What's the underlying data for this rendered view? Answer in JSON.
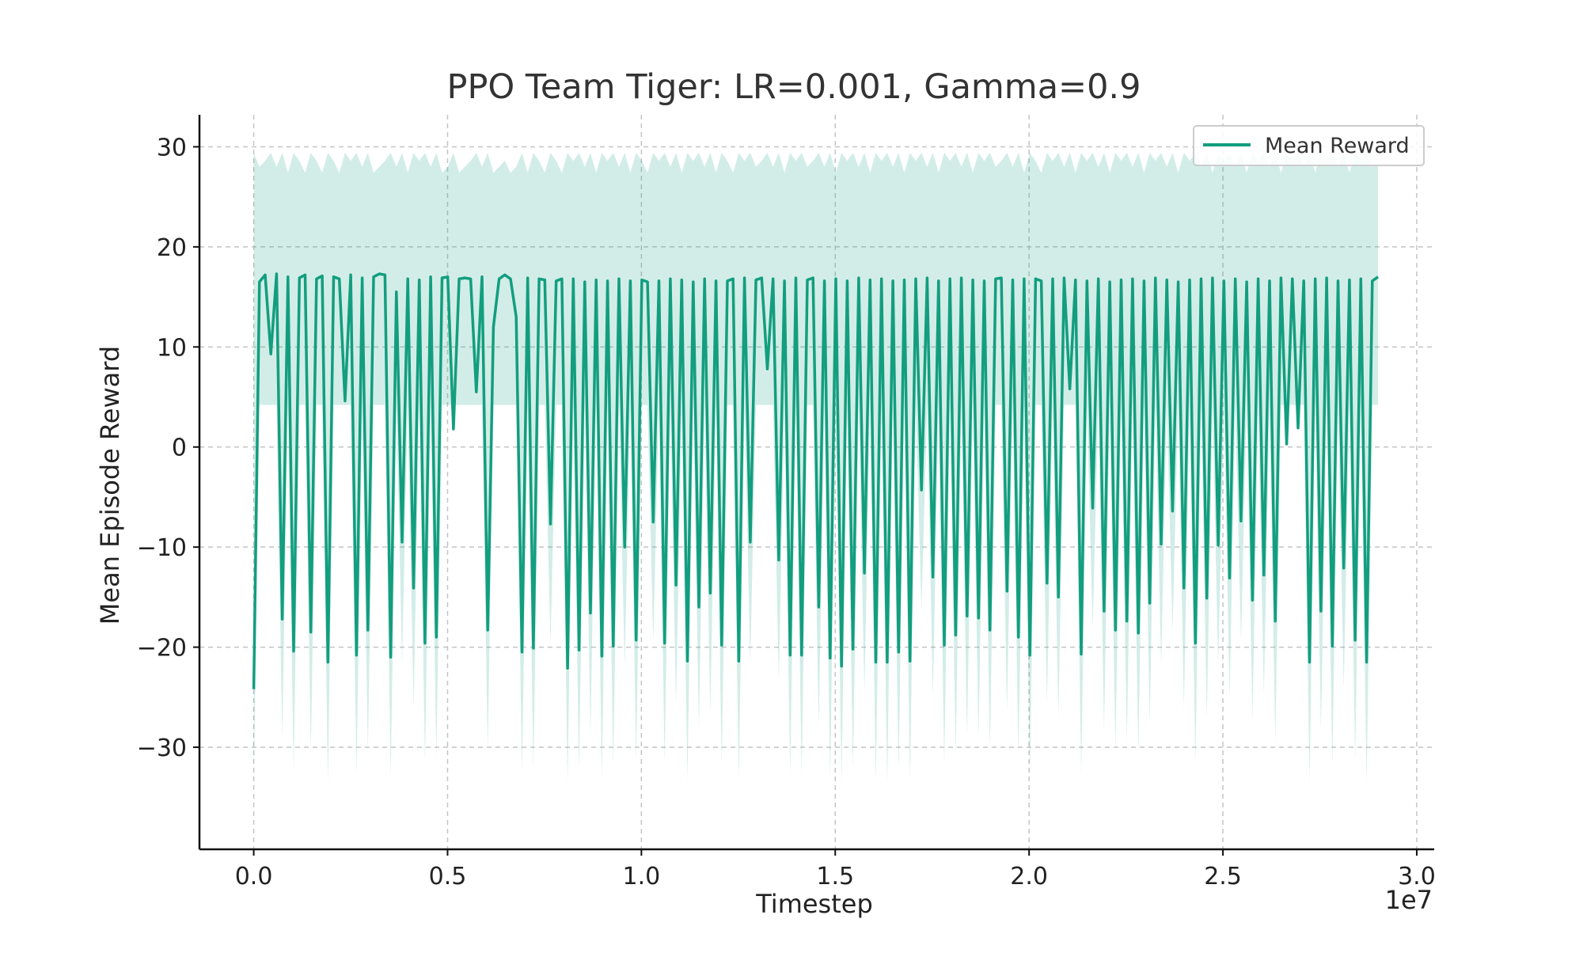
{
  "chart_data": {
    "type": "line",
    "title": "PPO Team Tiger: LR=0.001, Gamma=0.9",
    "xlabel": "Timestep",
    "ylabel": "Mean Episode Reward",
    "x_offset_label": "1e7",
    "x_tick_labels": [
      "0.0",
      "0.5",
      "1.0",
      "1.5",
      "2.0",
      "2.5",
      "3.0"
    ],
    "y_tick_labels": [
      "30",
      "20",
      "10",
      "0",
      "−10",
      "−20",
      "−30"
    ],
    "x_ticks": [
      0,
      5000000,
      10000000,
      15000000,
      20000000,
      25000000,
      30000000
    ],
    "y_ticks": [
      30,
      20,
      10,
      0,
      -10,
      -20,
      -30
    ],
    "xlim": [
      -1400000,
      30450000
    ],
    "ylim": [
      -40.2,
      33.2
    ],
    "grid": true,
    "legend_position": "top-right",
    "colors": {
      "line": "#129e7f",
      "band": "#129e7f",
      "axis": "#111111",
      "grid": "#c4c4c4",
      "text": "#333333"
    },
    "series": [
      {
        "name": "Mean Reward",
        "x_start": 0,
        "x_end": 29000000,
        "values": [
          -24.2,
          16.5,
          17.2,
          9.3,
          17.3,
          -17.2,
          17.0,
          -20.4,
          16.9,
          17.2,
          -18.5,
          16.8,
          17.1,
          -21.5,
          17.0,
          16.8,
          4.6,
          17.2,
          -20.8,
          16.9,
          -18.3,
          17.0,
          17.3,
          17.2,
          -21.0,
          15.5,
          -9.5,
          16.8,
          -14.1,
          16.7,
          -19.6,
          17.0,
          -19.0,
          16.9,
          17.0,
          1.8,
          16.8,
          16.9,
          16.8,
          5.5,
          17.0,
          -18.3,
          12.0,
          16.8,
          17.2,
          16.8,
          13.0,
          -20.5,
          16.9,
          -20.1,
          16.8,
          16.7,
          -7.7,
          16.6,
          16.8,
          -22.1,
          16.8,
          -20.3,
          16.5,
          -16.6,
          16.7,
          -20.9,
          16.6,
          -19.9,
          16.8,
          -10.0,
          16.6,
          -19.3,
          16.7,
          16.5,
          -7.5,
          16.6,
          -19.6,
          16.8,
          -13.8,
          16.7,
          -21.4,
          16.5,
          -16.0,
          16.8,
          -14.6,
          16.6,
          -19.8,
          16.6,
          16.8,
          -21.4,
          16.9,
          -9.5,
          16.7,
          16.9,
          7.8,
          16.8,
          -11.3,
          16.6,
          -20.8,
          16.9,
          -20.8,
          16.7,
          16.9,
          -16.0,
          16.6,
          -21.1,
          16.8,
          -21.9,
          16.6,
          -20.2,
          16.9,
          -12.6,
          16.7,
          -21.5,
          16.8,
          -21.5,
          16.6,
          -20.5,
          16.7,
          -21.4,
          16.8,
          -4.3,
          16.9,
          -13.0,
          16.6,
          -19.8,
          16.8,
          -18.8,
          16.9,
          -16.9,
          16.7,
          -17.1,
          16.6,
          -18.3,
          16.8,
          16.9,
          -14.4,
          16.7,
          -19.0,
          16.8,
          -20.8,
          16.8,
          16.6,
          -13.6,
          16.8,
          -15.0,
          16.9,
          5.8,
          16.7,
          -20.7,
          16.6,
          -6.1,
          16.8,
          -16.4,
          16.5,
          -18.3,
          16.7,
          -17.4,
          16.8,
          -18.6,
          16.6,
          -15.6,
          16.9,
          -9.7,
          16.7,
          -6.4,
          16.5,
          -14.1,
          16.7,
          -19.6,
          16.8,
          -15.1,
          16.9,
          -9.8,
          16.6,
          -13.1,
          16.8,
          -7.4,
          16.5,
          -15.3,
          16.8,
          -12.8,
          16.6,
          -17.4,
          16.9,
          0.3,
          16.8,
          1.9,
          16.6,
          -21.5,
          16.8,
          -16.4,
          16.9,
          -19.9,
          16.6,
          -12.1,
          16.7,
          -19.3,
          16.8,
          -21.5,
          16.6,
          17.0
        ]
      }
    ],
    "band": {
      "upper_base": 29.4,
      "lower_base": 4.2,
      "lower_extreme": -33.5
    }
  }
}
